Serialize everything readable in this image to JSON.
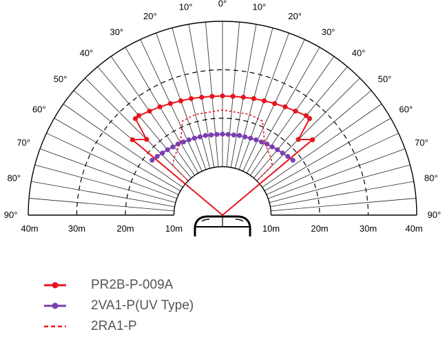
{
  "chart_data": {
    "type": "polar-detection-pattern",
    "title": "",
    "angle_labels": [
      "90°",
      "80°",
      "70°",
      "60°",
      "50°",
      "40°",
      "30°",
      "20°",
      "10°",
      "0°",
      "10°",
      "20°",
      "30°",
      "40°",
      "50°",
      "60°",
      "70°",
      "80°",
      "90°"
    ],
    "distance_labels": [
      "40m",
      "30m",
      "20m",
      "10m",
      "10m",
      "20m",
      "30m",
      "40m"
    ],
    "radial_range_m": [
      0,
      40
    ],
    "arcs_m": [
      {
        "r": 10,
        "style": "solid"
      },
      {
        "r": 20,
        "style": "dashed"
      },
      {
        "r": 30,
        "style": "dashed"
      },
      {
        "r": 40,
        "style": "solid"
      }
    ],
    "radial_line_step_deg": 5,
    "series": [
      {
        "name": "PR2B-P-009A",
        "color": "#e8141e",
        "line": "solid",
        "marker": "dot",
        "points": [
          {
            "angle": -50,
            "r": 0
          },
          {
            "angle": -50,
            "r": 24.2
          },
          {
            "angle": -45,
            "r": 22.1
          },
          {
            "angle": -42,
            "r": 26.8
          },
          {
            "angle": -40,
            "r": 26.8
          },
          {
            "angle": -35,
            "r": 26.2
          },
          {
            "angle": -30,
            "r": 25.8
          },
          {
            "angle": -25,
            "r": 25.4
          },
          {
            "angle": -20,
            "r": 25.1
          },
          {
            "angle": -15,
            "r": 24.9
          },
          {
            "angle": -10,
            "r": 24.7
          },
          {
            "angle": -5,
            "r": 24.6
          },
          {
            "angle": 0,
            "r": 24.6
          },
          {
            "angle": 5,
            "r": 24.6
          },
          {
            "angle": 10,
            "r": 24.7
          },
          {
            "angle": 15,
            "r": 24.9
          },
          {
            "angle": 20,
            "r": 25.1
          },
          {
            "angle": 25,
            "r": 25.4
          },
          {
            "angle": 30,
            "r": 25.8
          },
          {
            "angle": 35,
            "r": 26.2
          },
          {
            "angle": 40,
            "r": 26.8
          },
          {
            "angle": 42,
            "r": 26.8
          },
          {
            "angle": 45,
            "r": 22.1
          },
          {
            "angle": 50,
            "r": 24.2
          },
          {
            "angle": 50,
            "r": 0
          }
        ]
      },
      {
        "name": "2VA1-P(UV Type)",
        "color": "#7b3fb0",
        "line": "solid",
        "marker": "dot",
        "points": [
          {
            "angle": -52,
            "r": 18.4
          },
          {
            "angle": -48,
            "r": 18.1
          },
          {
            "angle": -44,
            "r": 17.8
          },
          {
            "angle": -40,
            "r": 17.6
          },
          {
            "angle": -36,
            "r": 17.4
          },
          {
            "angle": -32,
            "r": 17.3
          },
          {
            "angle": -28,
            "r": 17.1
          },
          {
            "angle": -24,
            "r": 17.0
          },
          {
            "angle": -20,
            "r": 16.9
          },
          {
            "angle": -16,
            "r": 16.8
          },
          {
            "angle": -12,
            "r": 16.8
          },
          {
            "angle": -8,
            "r": 16.7
          },
          {
            "angle": -4,
            "r": 16.7
          },
          {
            "angle": 0,
            "r": 16.7
          },
          {
            "angle": 4,
            "r": 16.7
          },
          {
            "angle": 8,
            "r": 16.7
          },
          {
            "angle": 12,
            "r": 16.8
          },
          {
            "angle": 16,
            "r": 16.8
          },
          {
            "angle": 20,
            "r": 16.9
          },
          {
            "angle": 24,
            "r": 17.0
          },
          {
            "angle": 28,
            "r": 17.1
          },
          {
            "angle": 32,
            "r": 17.3
          },
          {
            "angle": 36,
            "r": 17.4
          },
          {
            "angle": 40,
            "r": 17.6
          },
          {
            "angle": 44,
            "r": 17.8
          },
          {
            "angle": 48,
            "r": 18.1
          },
          {
            "angle": 52,
            "r": 18.4
          }
        ]
      },
      {
        "name": "2RA1-P",
        "color": "#e8141e",
        "line": "dashed",
        "marker": "none",
        "points": [
          {
            "angle": -45,
            "r": 10.2
          },
          {
            "angle": -45,
            "r": 14.5
          },
          {
            "angle": -40,
            "r": 15.5
          },
          {
            "angle": -30,
            "r": 17.3
          },
          {
            "angle": -23,
            "r": 21.1
          },
          {
            "angle": -15,
            "r": 21.5
          },
          {
            "angle": 0,
            "r": 21.7
          },
          {
            "angle": 15,
            "r": 21.5
          },
          {
            "angle": 23,
            "r": 21.1
          },
          {
            "angle": 30,
            "r": 17.3
          },
          {
            "angle": 40,
            "r": 15.5
          },
          {
            "angle": 45,
            "r": 14.5
          },
          {
            "angle": 45,
            "r": 10.2
          }
        ]
      }
    ],
    "legend": [
      {
        "label": "PR2B-P-009A",
        "color": "#e8141e",
        "line": "solid",
        "marker": "dot"
      },
      {
        "label": "2VA1-P(UV Type)",
        "color": "#7b3fb0",
        "line": "solid",
        "marker": "dot"
      },
      {
        "label": "2RA1-P",
        "color": "#e8141e",
        "line": "dashed",
        "marker": "none"
      }
    ],
    "legend_position": "bottom-left"
  }
}
